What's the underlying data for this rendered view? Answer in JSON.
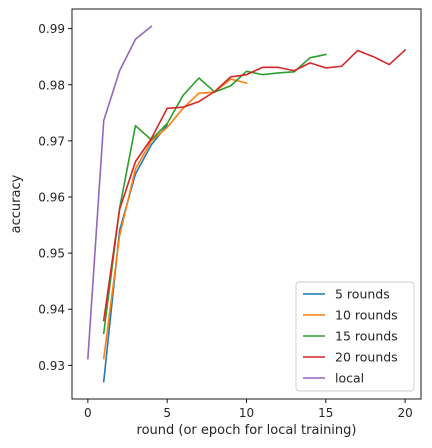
{
  "chart_data": {
    "type": "line",
    "title": "",
    "xlabel": "round (or epoch for local training)",
    "ylabel": "accuracy",
    "xlim": [
      -1,
      21
    ],
    "ylim": [
      0.924,
      0.9935
    ],
    "xticks": [
      0,
      5,
      10,
      15,
      20
    ],
    "yticks": [
      0.93,
      0.94,
      0.95,
      0.96,
      0.97,
      0.98,
      0.99
    ],
    "ytick_labels": [
      "0.93",
      "0.94",
      "0.95",
      "0.96",
      "0.97",
      "0.98",
      "0.99"
    ],
    "grid": false,
    "legend_position": "bottom-right",
    "series": [
      {
        "name": "5 rounds",
        "color": "#1f77b4",
        "x": [
          1,
          2,
          3,
          4,
          5
        ],
        "y": [
          0.9271,
          0.954,
          0.9641,
          0.9693,
          0.9728
        ]
      },
      {
        "name": "10 rounds",
        "color": "#ff7f0e",
        "x": [
          1,
          2,
          3,
          4,
          5,
          6,
          7,
          8,
          9,
          10
        ],
        "y": [
          0.9312,
          0.9531,
          0.965,
          0.97,
          0.9724,
          0.9758,
          0.9785,
          0.9787,
          0.981,
          0.9803
        ]
      },
      {
        "name": "15 rounds",
        "color": "#2ca02c",
        "x": [
          1,
          2,
          3,
          4,
          5,
          6,
          7,
          8,
          9,
          10,
          11,
          12,
          13,
          14,
          15
        ],
        "y": [
          0.9357,
          0.958,
          0.9727,
          0.9702,
          0.9731,
          0.9781,
          0.9812,
          0.9787,
          0.9798,
          0.9824,
          0.9818,
          0.9821,
          0.9823,
          0.9848,
          0.9854
        ]
      },
      {
        "name": "20 rounds",
        "color": "#d62728",
        "x": [
          1,
          2,
          3,
          4,
          5,
          6,
          7,
          8,
          9,
          10,
          11,
          12,
          13,
          14,
          15,
          16,
          17,
          18,
          19,
          20
        ],
        "y": [
          0.938,
          0.9578,
          0.9663,
          0.9704,
          0.9758,
          0.976,
          0.977,
          0.9788,
          0.9814,
          0.9818,
          0.9831,
          0.9831,
          0.9825,
          0.9839,
          0.983,
          0.9833,
          0.9861,
          0.985,
          0.9836,
          0.9862
        ]
      },
      {
        "name": "local",
        "color": "#9467bd",
        "x": [
          0,
          1,
          2,
          3,
          4
        ],
        "y": [
          0.9312,
          0.9736,
          0.9825,
          0.9881,
          0.9904
        ]
      }
    ]
  }
}
